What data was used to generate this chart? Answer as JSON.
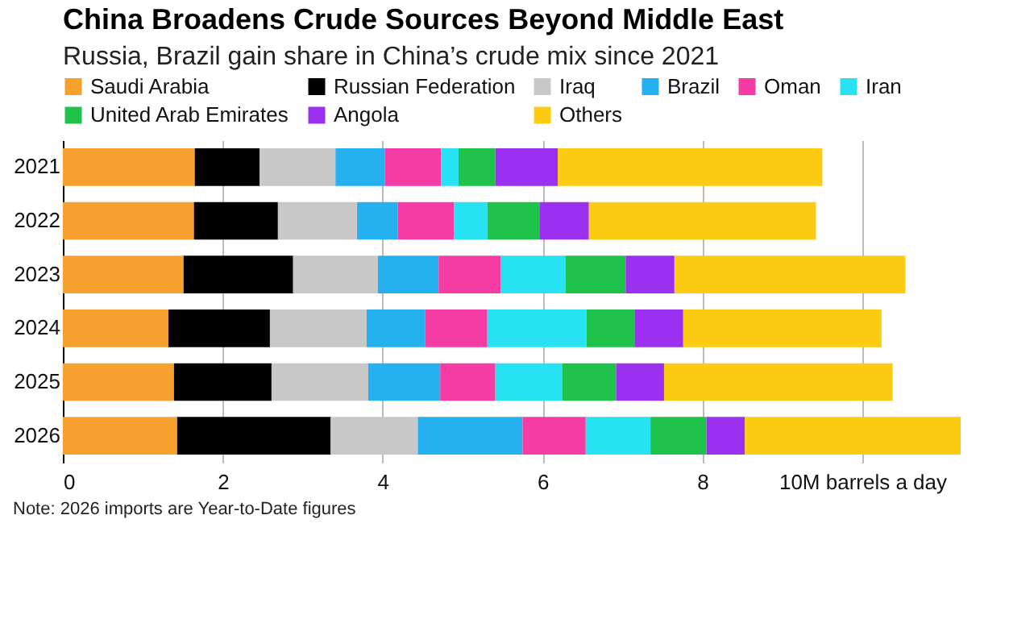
{
  "chart_data": {
    "type": "bar",
    "orientation": "horizontal",
    "stacked": true,
    "title": "China Broadens Crude Sources Beyond Middle East",
    "subtitle": "Russia, Brazil gain share in China’s crude mix since 2021",
    "categories": [
      "2021",
      "2022",
      "2023",
      "2024",
      "2025",
      "2026"
    ],
    "series": [
      {
        "name": "Saudi Arabia",
        "color": "#f7a02d",
        "values": [
          1.65,
          1.64,
          1.51,
          1.32,
          1.39,
          1.43
        ]
      },
      {
        "name": "Russian Federation",
        "color": "#000000",
        "values": [
          0.81,
          1.05,
          1.37,
          1.27,
          1.22,
          1.92
        ]
      },
      {
        "name": "Iraq",
        "color": "#c8c8c8",
        "values": [
          0.95,
          0.99,
          1.06,
          1.21,
          1.21,
          1.09
        ]
      },
      {
        "name": "Brazil",
        "color": "#25b1f0",
        "values": [
          0.62,
          0.51,
          0.76,
          0.73,
          0.9,
          1.31
        ]
      },
      {
        "name": "Oman",
        "color": "#f53ba4",
        "values": [
          0.7,
          0.7,
          0.78,
          0.78,
          0.69,
          0.79
        ]
      },
      {
        "name": "Iran",
        "color": "#27e2f2",
        "values": [
          0.22,
          0.42,
          0.81,
          1.24,
          0.84,
          0.81
        ]
      },
      {
        "name": "United Arab Emirates",
        "color": "#1fc24a",
        "values": [
          0.46,
          0.65,
          0.75,
          0.6,
          0.67,
          0.7
        ]
      },
      {
        "name": "Angola",
        "color": "#9b30f0",
        "values": [
          0.78,
          0.62,
          0.61,
          0.61,
          0.6,
          0.48
        ]
      },
      {
        "name": "Others",
        "color": "#fccb12",
        "values": [
          3.31,
          2.84,
          2.89,
          2.48,
          2.86,
          2.7
        ]
      }
    ],
    "xlim": [
      0,
      11.23
    ],
    "xticks": [
      0,
      2,
      4,
      6,
      8,
      {
        "value": 10,
        "label": "10M barrels a day"
      }
    ],
    "grid": "x",
    "legend": "top",
    "annotations": [
      "Note: 2026 imports are Year-to-Date figures"
    ]
  }
}
